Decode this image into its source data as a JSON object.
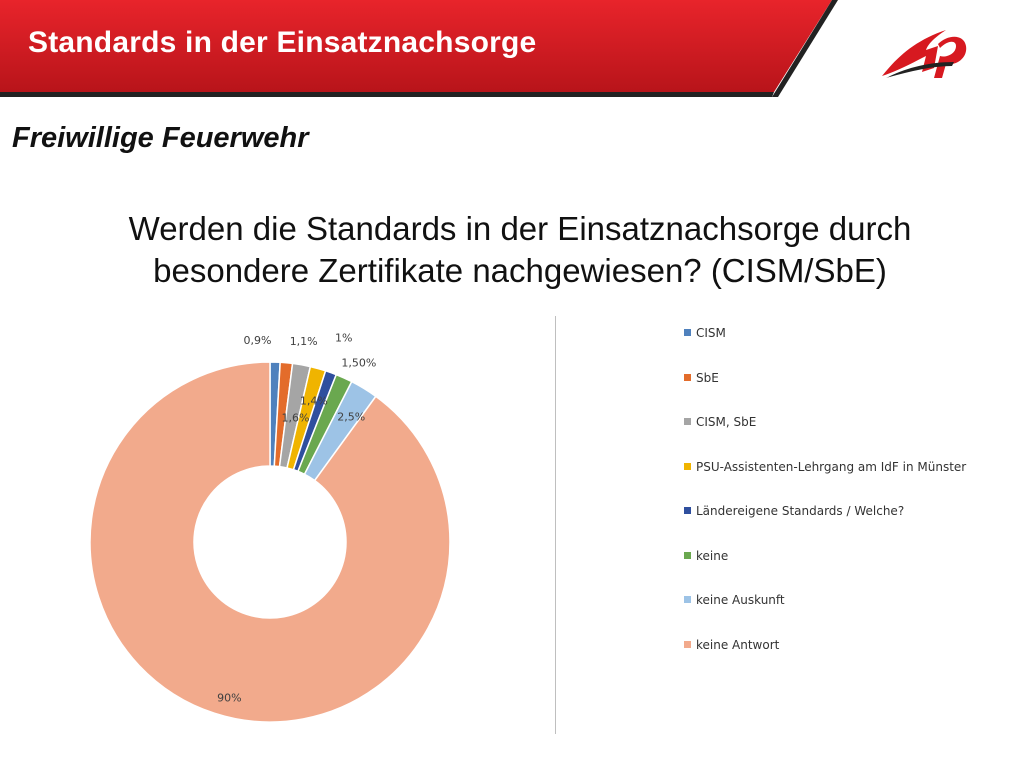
{
  "header": {
    "title": "Standards in der Einsatznachsorge",
    "band_color": "#d71920",
    "logo_icon": "red-flame-logo-icon"
  },
  "subtitle": "Freiwillige Feuerwehr",
  "question": {
    "line1": "Werden die Standards in der Einsatznachsorge durch",
    "line2": "besondere Zertifikate nachgewiesen? (CISM/SbE)"
  },
  "chart_data": {
    "type": "pie",
    "donut": true,
    "title": "",
    "legend_position": "right",
    "slices": [
      {
        "label": "CISM",
        "value": 0.9,
        "data_label": "0,9%",
        "color": "#4f81bd"
      },
      {
        "label": "SbE",
        "value": 1.1,
        "data_label": "1,1%",
        "color": "#e36c2b"
      },
      {
        "label": "CISM, SbE",
        "value": 1.6,
        "data_label": "1,6%",
        "color": "#a5a5a5"
      },
      {
        "label": "PSU-Assistenten-Lehrgang am IdF in Münster",
        "value": 1.4,
        "data_label": "1,4%",
        "color": "#f0b400"
      },
      {
        "label": "Ländereigene Standards / Welche?",
        "value": 1.0,
        "data_label": "1%",
        "color": "#2f4f9e"
      },
      {
        "label": "keine",
        "value": 1.5,
        "data_label": "1,50%",
        "color": "#6aa84f"
      },
      {
        "label": "keine Auskunft",
        "value": 2.5,
        "data_label": "2,5%",
        "color": "#9dc3e6"
      },
      {
        "label": "keine Antwort",
        "value": 90,
        "data_label": "90%",
        "color": "#f2aa8c"
      }
    ]
  }
}
